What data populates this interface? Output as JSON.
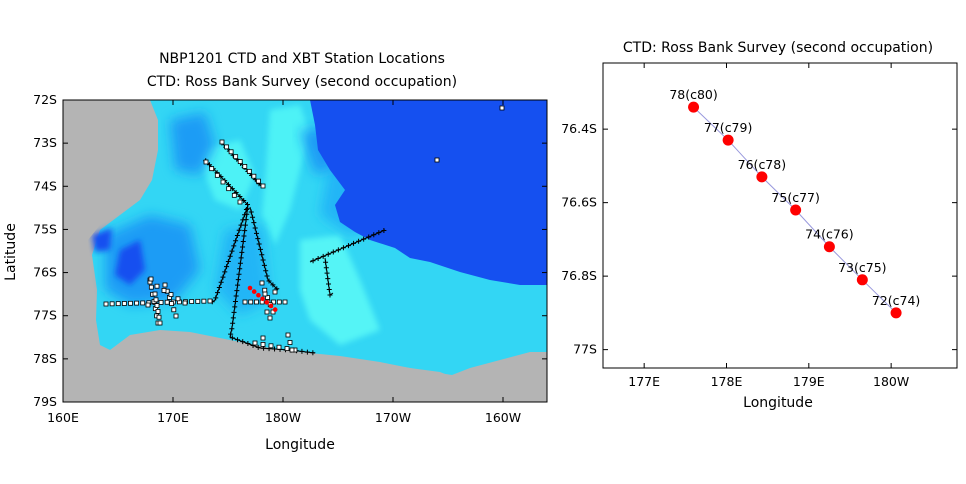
{
  "left": {
    "title_line1": "NBP1201 CTD and XBT Station Locations",
    "title_line2": "CTD: Ross Bank Survey (second occupation)",
    "xlabel": "Longitude",
    "ylabel": "Latitude",
    "x_ticks": [
      "160E",
      "170E",
      "180W",
      "170W",
      "160W"
    ],
    "y_ticks": [
      "72S",
      "73S",
      "74S",
      "75S",
      "76S",
      "77S",
      "78S",
      "79S"
    ],
    "colors": {
      "land": "#b4b4b4",
      "deep_ocean": "#1550f0",
      "mid_ocean": "#1f9cf5",
      "shelf": "#33d6f4",
      "shallow": "#2ef0f4",
      "ctd_marker": "#ffffff",
      "xbt_marker": "#000000",
      "highlight": "#ff0000"
    }
  },
  "right": {
    "title": "CTD: Ross Bank Survey (second occupation)",
    "xlabel": "Longitude",
    "x_ticks": [
      "177E",
      "178E",
      "179E",
      "180W"
    ],
    "y_ticks": [
      "76.4S",
      "76.6S",
      "76.8S",
      "77S"
    ],
    "point_color": "#ff0000",
    "line_color": "#9999dd"
  },
  "chart_data": {
    "type": "scatter",
    "title": "CTD: Ross Bank Survey (second occupation)",
    "xlabel": "Longitude",
    "xlim": [
      176.5,
      180.8
    ],
    "ylim": [
      -77.05,
      -76.22
    ],
    "grid": false,
    "series": [
      {
        "points": [
          {
            "label": "78(c80)",
            "lon": 177.6,
            "lat": -76.34
          },
          {
            "label": "77(c79)",
            "lon": 178.02,
            "lat": -76.43
          },
          {
            "label": "76(c78)",
            "lon": 178.43,
            "lat": -76.53
          },
          {
            "label": "75(c77)",
            "lon": 178.84,
            "lat": -76.62
          },
          {
            "label": "74(c76)",
            "lon": 179.25,
            "lat": -76.72
          },
          {
            "label": "73(c75)",
            "lon": 179.65,
            "lat": -76.81
          },
          {
            "label": "72(c74)",
            "lon": 180.06,
            "lat": -76.9
          }
        ]
      }
    ]
  }
}
